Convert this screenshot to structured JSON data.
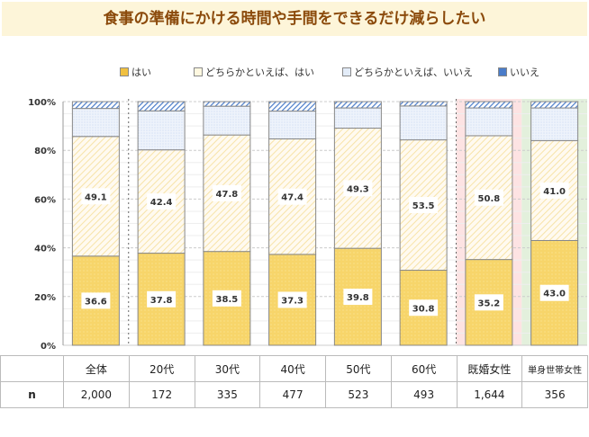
{
  "title": "食事の準備にかける時間や手間をできるだけ減らしたい",
  "chart_data": {
    "type": "bar",
    "stacked": true,
    "title": "食事の準備にかける時間や手間をできるだけ減らしたい",
    "categories": [
      "全体",
      "20代",
      "30代",
      "40代",
      "50代",
      "60代",
      "既婚女性",
      "単身世帯女性"
    ],
    "n": [
      "2,000",
      "172",
      "335",
      "477",
      "523",
      "493",
      "1,644",
      "356"
    ],
    "n_label": "n",
    "yticks": [
      "0%",
      "20%",
      "40%",
      "60%",
      "80%",
      "100%"
    ],
    "ylim": [
      0,
      100
    ],
    "legend_position": "top",
    "series": [
      {
        "name": "はい",
        "color": "#f7d56a",
        "values": [
          36.6,
          37.8,
          38.5,
          37.3,
          39.8,
          30.8,
          35.2,
          43.0
        ],
        "labels": [
          "36.6",
          "37.8",
          "38.5",
          "37.3",
          "39.8",
          "30.8",
          "35.2",
          "43.0"
        ]
      },
      {
        "name": "どちらかといえば、はい",
        "color": "#fdf1d0",
        "values": [
          49.1,
          42.4,
          47.8,
          47.4,
          49.3,
          53.5,
          50.8,
          41.0
        ],
        "labels": [
          "49.1",
          "42.4",
          "47.8",
          "47.4",
          "49.3",
          "53.5",
          "50.8",
          "41.0"
        ]
      },
      {
        "name": "どちらかといえば、いいえ",
        "color": "#e3ecf8",
        "values": [
          11.5,
          16.0,
          11.8,
          11.4,
          8.3,
          13.9,
          11.4,
          13.4
        ]
      },
      {
        "name": "いいえ",
        "color": "#4a7cc9",
        "values": [
          2.8,
          3.8,
          1.9,
          3.9,
          2.6,
          1.8,
          2.6,
          2.6
        ]
      }
    ]
  }
}
